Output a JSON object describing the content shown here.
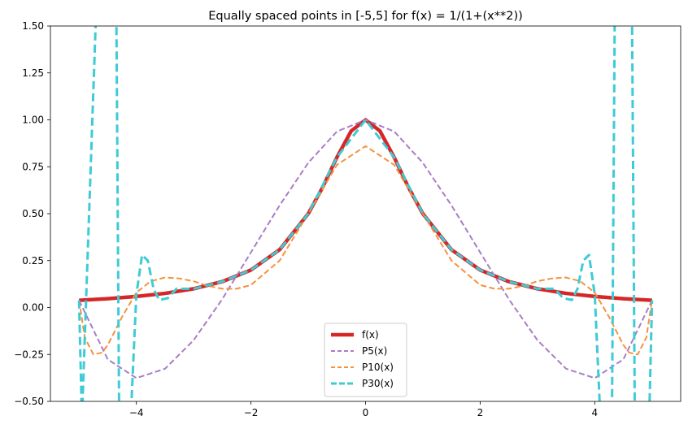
{
  "chart_data": {
    "type": "line",
    "title": "Equally spaced points in [-5,5] for f(x) = 1/(1+(x**2))",
    "xlabel": "",
    "ylabel": "",
    "xlim": [
      -5.5,
      5.5
    ],
    "ylim": [
      -0.5,
      1.5
    ],
    "xticks": [
      -4,
      -2,
      0,
      2,
      4
    ],
    "xtick_labels": [
      "−4",
      "−2",
      "0",
      "2",
      "4"
    ],
    "yticks": [
      -0.5,
      -0.25,
      0.0,
      0.25,
      0.5,
      0.75,
      1.0,
      1.25,
      1.5
    ],
    "ytick_labels": [
      "−0.50",
      "−0.25",
      "0.00",
      "0.25",
      "0.50",
      "0.75",
      "1.00",
      "1.25",
      "1.50"
    ],
    "grid": false,
    "legend_position": "lower-center",
    "series": [
      {
        "name": "f(x)",
        "color": "#d62728",
        "style": "solid",
        "x": [
          -5,
          -4.5,
          -4,
          -3.5,
          -3,
          -2.5,
          -2,
          -1.5,
          -1,
          -0.75,
          -0.5,
          -0.25,
          0,
          0.25,
          0.5,
          0.75,
          1,
          1.5,
          2,
          2.5,
          3,
          3.5,
          4,
          4.5,
          5
        ],
        "values": [
          0.0385,
          0.047,
          0.0588,
          0.0755,
          0.1,
          0.138,
          0.2,
          0.308,
          0.5,
          0.64,
          0.8,
          0.941,
          1.0,
          0.941,
          0.8,
          0.64,
          0.5,
          0.308,
          0.2,
          0.138,
          0.1,
          0.0755,
          0.0588,
          0.047,
          0.0385
        ]
      },
      {
        "name": "P5(x)",
        "color": "#a87ec6",
        "style": "dashed",
        "x": [
          -5,
          -4.5,
          -4,
          -3.5,
          -3,
          -2.5,
          -2,
          -1.5,
          -1,
          -0.5,
          0,
          0.5,
          1,
          1.5,
          2,
          2.5,
          3,
          3.5,
          4,
          4.5,
          5
        ],
        "values": [
          0.038,
          -0.276,
          -0.376,
          -0.326,
          -0.174,
          0.045,
          0.294,
          0.544,
          0.771,
          0.938,
          1.0,
          0.938,
          0.771,
          0.544,
          0.294,
          0.045,
          -0.174,
          -0.326,
          -0.376,
          -0.276,
          0.038
        ]
      },
      {
        "name": "P10(x)",
        "color": "#f5923e",
        "style": "dashed",
        "x": [
          -5,
          -4.9,
          -4.75,
          -4.6,
          -4.5,
          -4.25,
          -4,
          -3.75,
          -3.5,
          -3.25,
          -3,
          -2.75,
          -2.5,
          -2.25,
          -2,
          -1.5,
          -1,
          -0.5,
          0,
          0.5,
          1,
          1.5,
          2,
          2.25,
          2.5,
          2.75,
          3,
          3.25,
          3.5,
          3.75,
          4,
          4.25,
          4.5,
          4.6,
          4.75,
          4.9,
          5
        ],
        "values": [
          0.038,
          -0.16,
          -0.25,
          -0.24,
          -0.2,
          -0.05,
          0.08,
          0.14,
          0.16,
          0.155,
          0.14,
          0.115,
          0.1,
          0.1,
          0.12,
          0.25,
          0.5,
          0.76,
          0.86,
          0.76,
          0.5,
          0.25,
          0.12,
          0.1,
          0.1,
          0.115,
          0.14,
          0.155,
          0.16,
          0.14,
          0.08,
          -0.05,
          -0.2,
          -0.24,
          -0.25,
          -0.16,
          0.038
        ]
      },
      {
        "name": "P30(x)",
        "color": "#3ecbd5",
        "style": "dashed",
        "x": [
          -5,
          -4.95,
          -4.7,
          -4.65,
          -4.35,
          -4.3,
          -4.1,
          -4.0,
          -3.9,
          -3.8,
          -3.7,
          -3.6,
          -3.45,
          -3.3,
          -3.2,
          -3.0,
          -2.5,
          -2.0,
          -1.5,
          -1.0,
          -0.5,
          0,
          0.5,
          1.0,
          1.5,
          2.0,
          2.5,
          3.0,
          3.2,
          3.3,
          3.45,
          3.6,
          3.7,
          3.8,
          3.9,
          4.0,
          4.1,
          4.3,
          4.35,
          4.65,
          4.7,
          4.95,
          5
        ],
        "values": [
          0.038,
          -0.6,
          1.6,
          1.6,
          1.6,
          -0.6,
          -0.6,
          0.07,
          0.28,
          0.25,
          0.1,
          0.04,
          0.05,
          0.1,
          0.1,
          0.1,
          0.138,
          0.2,
          0.308,
          0.5,
          0.8,
          1.0,
          0.8,
          0.5,
          0.308,
          0.2,
          0.138,
          0.1,
          0.1,
          0.1,
          0.05,
          0.04,
          0.1,
          0.25,
          0.28,
          0.07,
          -0.6,
          -0.6,
          1.6,
          1.6,
          -0.6,
          -0.6,
          0.038
        ]
      }
    ]
  }
}
